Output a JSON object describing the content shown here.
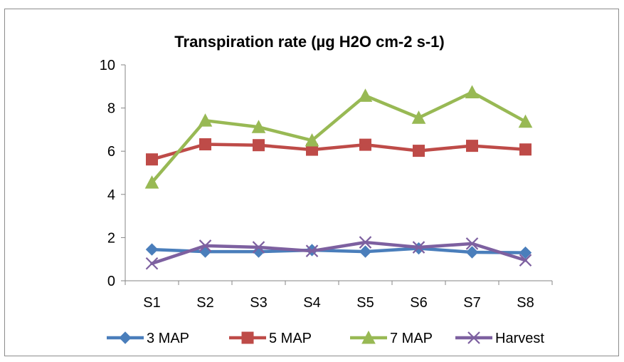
{
  "chart_data": {
    "type": "line",
    "title": "Transpiration rate (µg H2O cm-2 s-1)",
    "xlabel": "",
    "ylabel": "",
    "categories": [
      "S1",
      "S2",
      "S3",
      "S4",
      "S5",
      "S6",
      "S7",
      "S8"
    ],
    "ylim": [
      0,
      10
    ],
    "yticks": [
      "0",
      "2",
      "4",
      "6",
      "8",
      "10"
    ],
    "grid": false,
    "legend_position": "bottom",
    "series": [
      {
        "name": "3 MAP",
        "color": "#4a7ebb",
        "marker": "diamond",
        "values": [
          1.45,
          1.35,
          1.35,
          1.42,
          1.35,
          1.5,
          1.32,
          1.3
        ]
      },
      {
        "name": "5 MAP",
        "color": "#be4b48",
        "marker": "square",
        "values": [
          5.62,
          6.32,
          6.28,
          6.07,
          6.3,
          6.02,
          6.25,
          6.08
        ]
      },
      {
        "name": "7 MAP",
        "color": "#98b954",
        "marker": "triangle",
        "values": [
          4.55,
          7.42,
          7.12,
          6.5,
          8.57,
          7.55,
          8.73,
          7.37
        ]
      },
      {
        "name": "Harvest",
        "color": "#7d60a0",
        "marker": "x",
        "values": [
          0.8,
          1.62,
          1.55,
          1.38,
          1.78,
          1.55,
          1.72,
          0.95
        ]
      }
    ]
  }
}
